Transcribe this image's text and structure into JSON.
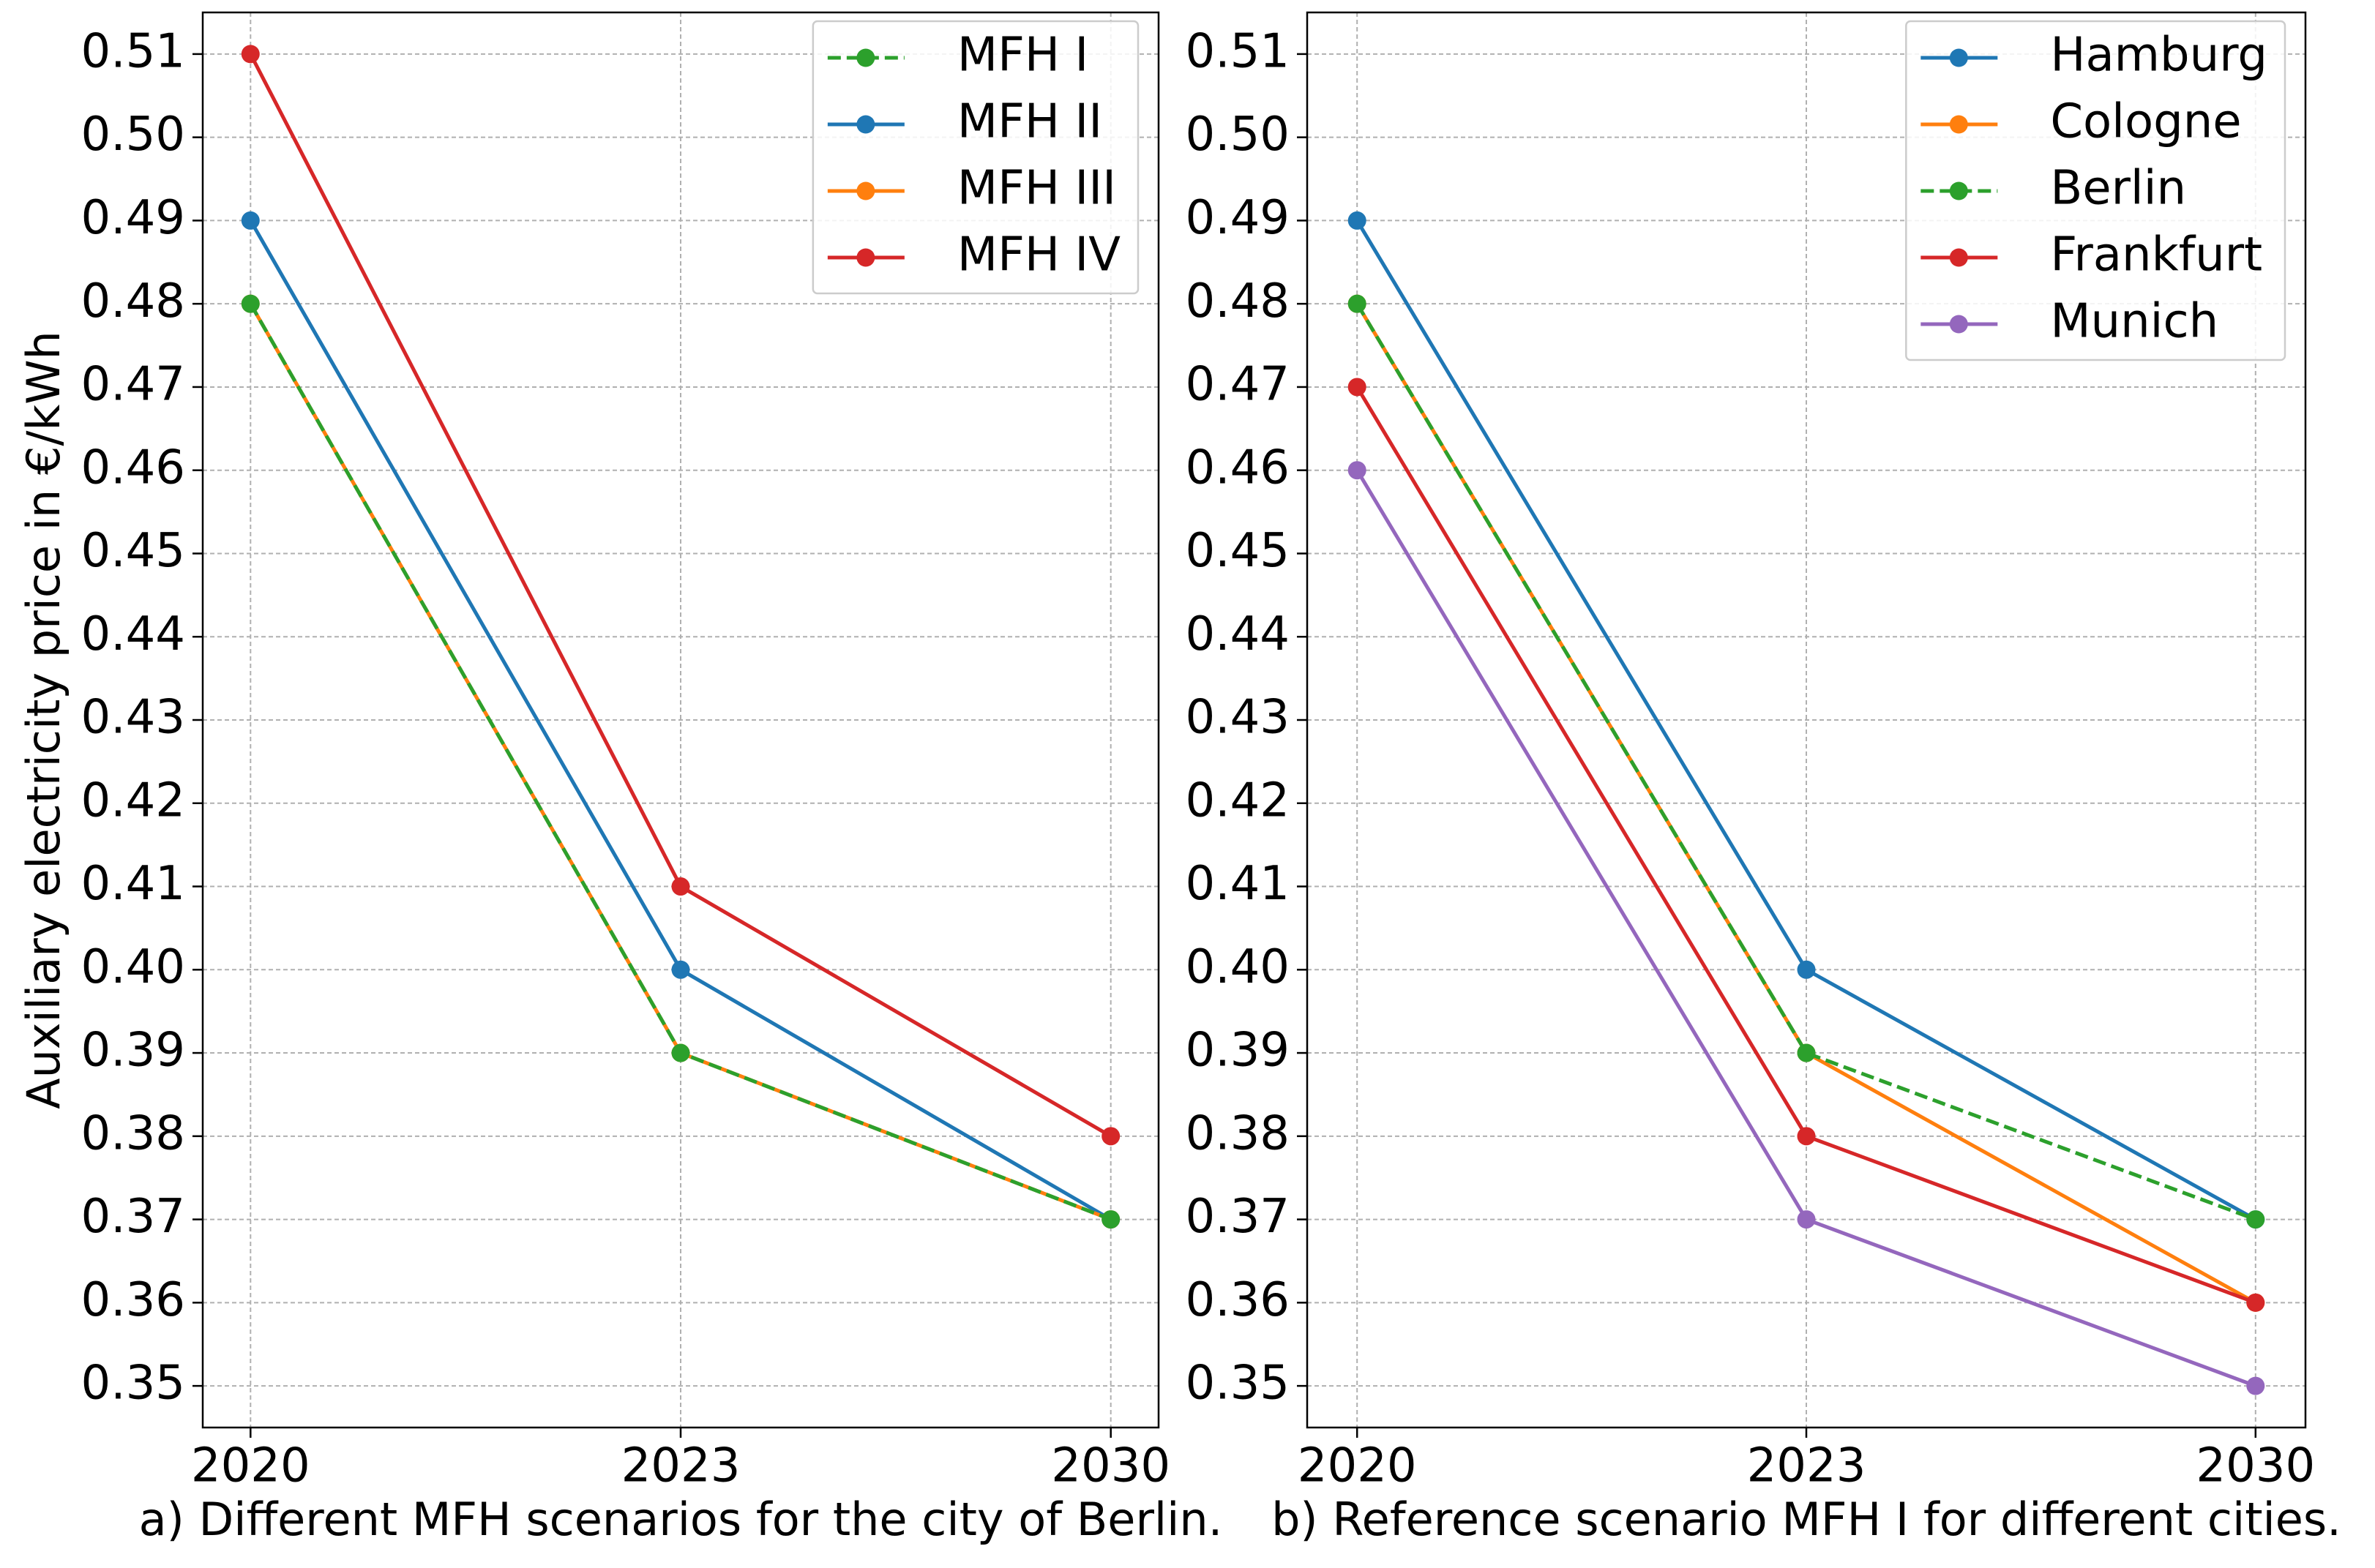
{
  "chart_data": [
    {
      "type": "line",
      "y_label": "Auxiliary electricity price in €/kWh",
      "x_label": "a) Different MFH scenarios for the city of Berlin.",
      "categories": [
        "2020",
        "2023",
        "2030"
      ],
      "series": [
        {
          "name": "MFH I",
          "color": "#2ca02c",
          "linestyle": "dashed",
          "values": [
            0.48,
            0.39,
            0.37
          ]
        },
        {
          "name": "MFH II",
          "color": "#1f77b4",
          "linestyle": "solid",
          "values": [
            0.49,
            0.4,
            0.37
          ]
        },
        {
          "name": "MFH III",
          "color": "#ff7f0e",
          "linestyle": "solid",
          "values": [
            0.48,
            0.39,
            0.37
          ]
        },
        {
          "name": "MFH IV",
          "color": "#d62728",
          "linestyle": "solid",
          "values": [
            0.51,
            0.41,
            0.38
          ]
        }
      ],
      "ylim": [
        0.345,
        0.515
      ],
      "yticks": [
        0.35,
        0.36,
        0.37,
        0.38,
        0.39,
        {
          "value": 0.4,
          "label": "0.40"
        },
        0.41,
        0.42,
        0.43,
        0.44,
        0.45,
        0.46,
        0.47,
        0.48,
        0.49,
        {
          "value": 0.5,
          "label": "0.50"
        },
        0.51
      ],
      "grid": true,
      "legend": "upper right"
    },
    {
      "type": "line",
      "x_label": "b) Reference scenario MFH I for different cities.",
      "categories": [
        "2020",
        "2023",
        "2030"
      ],
      "series": [
        {
          "name": "Hamburg",
          "color": "#1f77b4",
          "linestyle": "solid",
          "values": [
            0.49,
            0.4,
            0.37
          ]
        },
        {
          "name": "Cologne",
          "color": "#ff7f0e",
          "linestyle": "solid",
          "values": [
            0.48,
            0.39,
            0.36
          ]
        },
        {
          "name": "Berlin",
          "color": "#2ca02c",
          "linestyle": "dashed",
          "values": [
            0.48,
            0.39,
            0.37
          ]
        },
        {
          "name": "Frankfurt",
          "color": "#d62728",
          "linestyle": "solid",
          "values": [
            0.47,
            0.38,
            0.36
          ]
        },
        {
          "name": "Munich",
          "color": "#9467bd",
          "linestyle": "solid",
          "values": [
            0.46,
            0.37,
            0.35
          ]
        }
      ],
      "ylim": [
        0.345,
        0.515
      ],
      "yticks": [
        0.35,
        0.36,
        0.37,
        0.38,
        0.39,
        {
          "value": 0.4,
          "label": "0.40"
        },
        0.41,
        0.42,
        0.43,
        0.44,
        0.45,
        0.46,
        0.47,
        0.48,
        0.49,
        {
          "value": 0.5,
          "label": "0.50"
        },
        0.51
      ],
      "grid": true,
      "legend": "upper right"
    }
  ]
}
